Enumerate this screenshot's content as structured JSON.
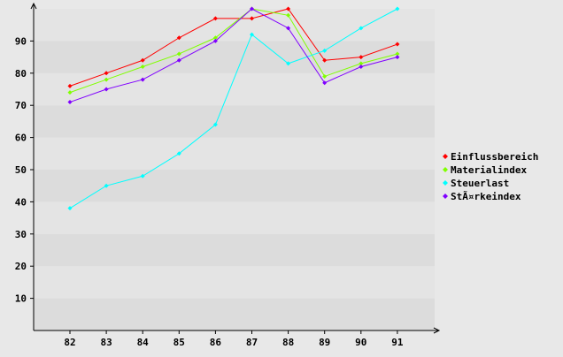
{
  "chart_data": {
    "type": "line",
    "title": "",
    "xlabel": "",
    "ylabel": "",
    "categories": [
      "82",
      "83",
      "84",
      "85",
      "86",
      "87",
      "88",
      "89",
      "90",
      "91"
    ],
    "ylim": [
      0,
      100
    ],
    "yticks": [
      10,
      20,
      30,
      40,
      50,
      60,
      70,
      80,
      90
    ],
    "grid": "alternating horizontal bands",
    "legend_position": "right",
    "series": [
      {
        "name": "Einflussbereich",
        "color": "#ff0000",
        "values": [
          76,
          80,
          84,
          91,
          97,
          97,
          100,
          84,
          85,
          89
        ]
      },
      {
        "name": "Materialindex",
        "color": "#80ff00",
        "values": [
          74,
          78,
          82,
          86,
          91,
          100,
          98,
          79,
          83,
          86
        ]
      },
      {
        "name": "Steuerlast",
        "color": "#00ffff",
        "values": [
          38,
          45,
          48,
          55,
          64,
          92,
          83,
          87,
          94,
          100
        ]
      },
      {
        "name": "StÃ¤rkeindex",
        "color": "#8000ff",
        "values": [
          71,
          75,
          78,
          84,
          90,
          100,
          94,
          77,
          82,
          85
        ]
      }
    ]
  }
}
